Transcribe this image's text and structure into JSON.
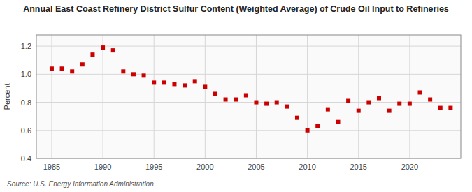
{
  "chart_data": {
    "type": "scatter",
    "title": "Annual East Coast Refinery District Sulfur Content (Weighted Average) of Crude Oil Input to Refineries",
    "y_label": "Percent",
    "annotations": [
      "Source: U.S. Energy Information Administration"
    ],
    "x": [
      1985,
      1986,
      1987,
      1988,
      1989,
      1990,
      1991,
      1992,
      1993,
      1994,
      1995,
      1996,
      1997,
      1998,
      1999,
      2000,
      2001,
      2002,
      2003,
      2004,
      2005,
      2006,
      2007,
      2008,
      2009,
      2010,
      2011,
      2012,
      2013,
      2014,
      2015,
      2016,
      2017,
      2018,
      2019,
      2020,
      2021,
      2022,
      2023,
      2024
    ],
    "values": [
      1.04,
      1.04,
      1.02,
      1.07,
      1.14,
      1.19,
      1.17,
      1.02,
      1.0,
      0.99,
      0.94,
      0.94,
      0.93,
      0.92,
      0.95,
      0.91,
      0.86,
      0.82,
      0.82,
      0.85,
      0.8,
      0.79,
      0.8,
      0.77,
      0.69,
      0.6,
      0.63,
      0.75,
      0.66,
      0.81,
      0.74,
      0.8,
      0.83,
      0.74,
      0.79,
      0.79,
      0.87,
      0.82,
      0.76,
      0.76
    ],
    "color": "#cc0000",
    "marker": "square",
    "xlim": [
      1983.5,
      2025
    ],
    "ylim": [
      0.4,
      1.28
    ],
    "xticks": [
      1985,
      1990,
      1995,
      2000,
      2005,
      2010,
      2015,
      2020
    ],
    "yticks": [
      0.4,
      0.6,
      0.8,
      {
        "value": 1.0,
        "label": "1.0"
      },
      1.2
    ],
    "grid": true
  }
}
